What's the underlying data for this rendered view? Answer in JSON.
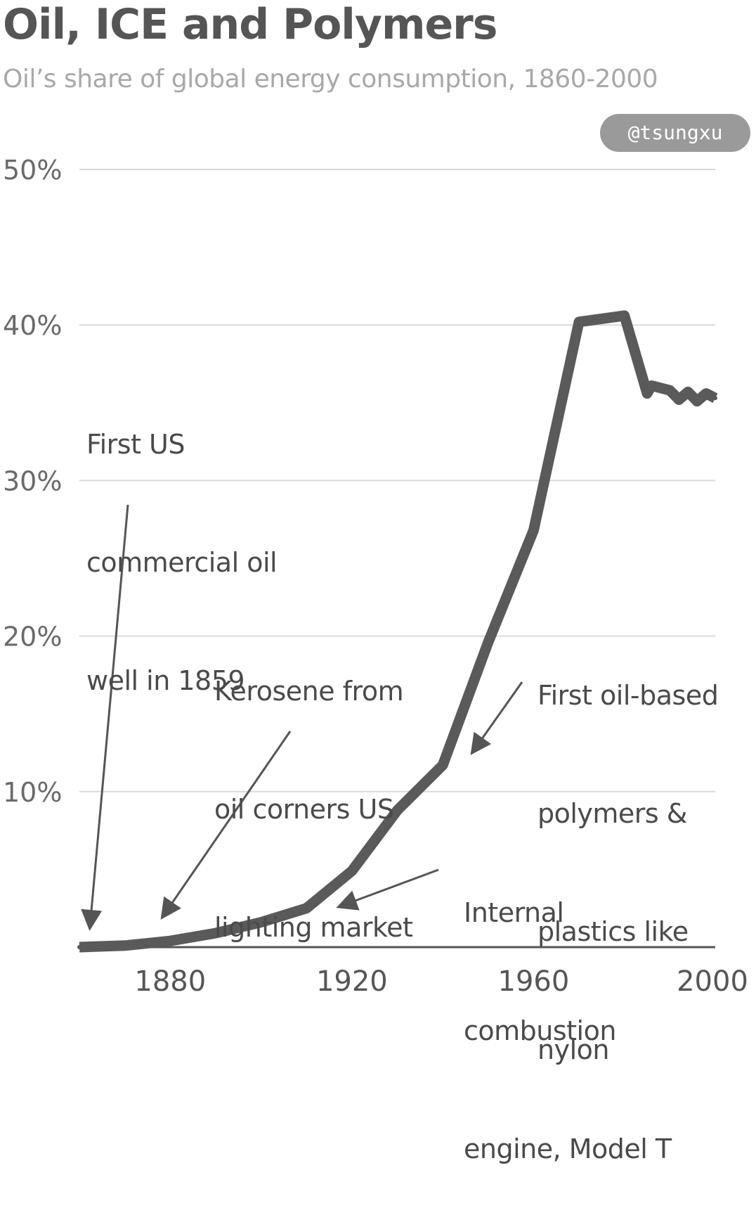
{
  "header": {
    "title": "Oil, ICE and Polymers",
    "subtitle": "Oil’s share of global energy consumption, 1860-2000",
    "handle": "@tsungxu"
  },
  "annotations": [
    {
      "lines": [
        "First US",
        "commercial oil",
        "well in 1859"
      ]
    },
    {
      "lines": [
        "Kerosene from",
        "oil corners US",
        "lighting market"
      ]
    },
    {
      "lines": [
        "First oil-based",
        "polymers &",
        "plastics like",
        "nylon"
      ]
    },
    {
      "lines": [
        "Internal",
        "combustion",
        "engine, Model T"
      ]
    }
  ],
  "chart_data": {
    "type": "line",
    "title": "Oil, ICE and Polymers",
    "subtitle": "Oil’s share of global energy consumption, 1860-2000",
    "xlabel": "",
    "ylabel": "",
    "xlim": [
      1860,
      2000
    ],
    "ylim": [
      0,
      50
    ],
    "x_ticks": [
      1880,
      1920,
      1960,
      2000
    ],
    "y_ticks": [
      10,
      20,
      30,
      40,
      50
    ],
    "y_tick_labels": [
      "10%",
      "20%",
      "30%",
      "40%",
      "50%"
    ],
    "grid": "horizontal",
    "series": [
      {
        "color": "#5a5a5a",
        "x": [
          1860,
          1870,
          1880,
          1890,
          1900,
          1910,
          1920,
          1930,
          1940,
          1950,
          1960,
          1970,
          1980,
          1985,
          1986,
          1990,
          1992,
          1994,
          1996,
          1998,
          2000
        ],
        "y": [
          0,
          0.1,
          0.4,
          0.9,
          1.6,
          2.5,
          4.9,
          8.8,
          11.7,
          19.6,
          26.8,
          40.2,
          40.6,
          35.6,
          36.1,
          35.8,
          35.2,
          35.7,
          35.1,
          35.6,
          35.3
        ]
      }
    ]
  }
}
